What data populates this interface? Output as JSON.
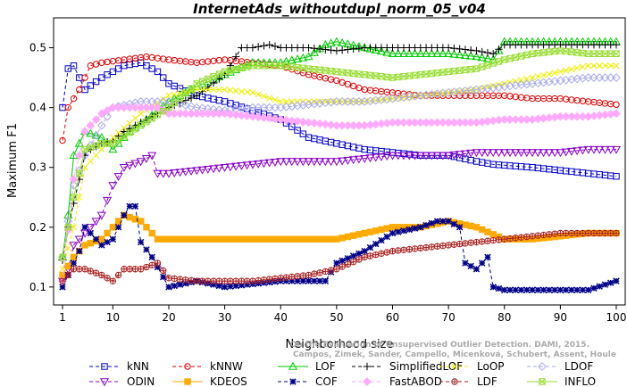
{
  "chart_data": {
    "type": "line",
    "title": "InternetAds_withoutdupl_norm_05_v04",
    "xlabel": "Neighborhood size",
    "ylabel": "Maximum F1",
    "xlim": [
      1,
      100
    ],
    "ylim": [
      0.07,
      0.55
    ],
    "x_ticks": [
      1,
      10,
      20,
      30,
      40,
      50,
      60,
      70,
      80,
      90,
      100
    ],
    "y_ticks": [
      0.1,
      0.2,
      0.3,
      0.4,
      0.5
    ],
    "grid": false,
    "legend_position": "bottom",
    "watermark": [
      "Campos, Zimek, Sander, Campello, Micenková, Schubert, Assent, Houle",
      "On the Evaluation of Unsupervised Outlier Detection. DAMI, 2015."
    ],
    "series": [
      {
        "name": "kNN",
        "color": "#0000cc",
        "marker": "square",
        "dash": "4,3",
        "x": [
          1,
          2,
          3,
          5,
          8,
          12,
          15,
          18,
          20,
          25,
          30,
          35,
          40,
          45,
          50,
          55,
          60,
          65,
          70,
          75,
          78,
          85,
          90,
          95,
          100
        ],
        "y": [
          0.4,
          0.465,
          0.47,
          0.43,
          0.45,
          0.47,
          0.475,
          0.46,
          0.44,
          0.42,
          0.41,
          0.395,
          0.38,
          0.35,
          0.34,
          0.33,
          0.325,
          0.32,
          0.32,
          0.31,
          0.305,
          0.3,
          0.295,
          0.29,
          0.285
        ]
      },
      {
        "name": "kNNW",
        "color": "#dd0000",
        "marker": "circle",
        "dash": "4,3",
        "x": [
          1,
          2,
          4,
          6,
          8,
          12,
          16,
          20,
          25,
          30,
          35,
          40,
          45,
          50,
          55,
          60,
          65,
          70,
          75,
          80,
          85,
          90,
          95,
          100
        ],
        "y": [
          0.345,
          0.4,
          0.43,
          0.47,
          0.475,
          0.48,
          0.485,
          0.48,
          0.475,
          0.48,
          0.475,
          0.47,
          0.455,
          0.445,
          0.43,
          0.425,
          0.42,
          0.42,
          0.42,
          0.42,
          0.415,
          0.415,
          0.41,
          0.405
        ]
      },
      {
        "name": "LOF",
        "color": "#00cc00",
        "marker": "triangle-up",
        "dash": "",
        "x": [
          1,
          2,
          3,
          5,
          8,
          10,
          13,
          16,
          20,
          25,
          30,
          35,
          40,
          45,
          48,
          50,
          55,
          60,
          65,
          70,
          75,
          78,
          80,
          85,
          90,
          95,
          100
        ],
        "y": [
          0.15,
          0.22,
          0.32,
          0.36,
          0.35,
          0.33,
          0.36,
          0.38,
          0.41,
          0.435,
          0.455,
          0.475,
          0.475,
          0.485,
          0.505,
          0.51,
          0.5,
          0.49,
          0.49,
          0.49,
          0.485,
          0.48,
          0.51,
          0.51,
          0.51,
          0.51,
          0.51
        ]
      },
      {
        "name": "SimplifiedLOF",
        "color": "#000000",
        "marker": "plus",
        "dash": "4,3",
        "x": [
          1,
          2,
          3,
          4,
          5,
          6,
          8,
          10,
          12,
          15,
          18,
          20,
          25,
          30,
          33,
          35,
          38,
          40,
          45,
          50,
          55,
          60,
          65,
          70,
          75,
          78,
          80,
          85,
          90,
          95,
          100
        ],
        "y": [
          0.145,
          0.2,
          0.24,
          0.28,
          0.32,
          0.33,
          0.34,
          0.345,
          0.36,
          0.375,
          0.39,
          0.4,
          0.42,
          0.455,
          0.5,
          0.5,
          0.505,
          0.5,
          0.5,
          0.495,
          0.5,
          0.5,
          0.5,
          0.5,
          0.495,
          0.49,
          0.505,
          0.505,
          0.505,
          0.505,
          0.505
        ]
      },
      {
        "name": "LoOP",
        "color": "#eeee00",
        "marker": "cross",
        "dash": "4,3",
        "x": [
          1,
          3,
          5,
          8,
          10,
          15,
          20,
          25,
          30,
          35,
          40,
          45,
          50,
          55,
          60,
          65,
          70,
          75,
          80,
          85,
          90,
          95,
          100
        ],
        "y": [
          0.13,
          0.2,
          0.3,
          0.33,
          0.35,
          0.39,
          0.42,
          0.43,
          0.43,
          0.425,
          0.41,
          0.41,
          0.41,
          0.41,
          0.415,
          0.42,
          0.425,
          0.43,
          0.44,
          0.45,
          0.46,
          0.47,
          0.47
        ]
      },
      {
        "name": "LDOF",
        "color": "#aaaaee",
        "marker": "diamond",
        "dash": "4,3",
        "x": [
          1,
          3,
          5,
          8,
          10,
          15,
          20,
          25,
          30,
          35,
          40,
          45,
          50,
          55,
          60,
          65,
          70,
          75,
          80,
          85,
          90,
          95,
          100
        ],
        "y": [
          0.15,
          0.27,
          0.32,
          0.37,
          0.4,
          0.41,
          0.41,
          0.4,
          0.395,
          0.4,
          0.4,
          0.405,
          0.41,
          0.41,
          0.415,
          0.42,
          0.425,
          0.43,
          0.435,
          0.44,
          0.445,
          0.45,
          0.45
        ]
      },
      {
        "name": "ODIN",
        "color": "#8800cc",
        "marker": "triangle-down",
        "dash": "4,3",
        "x": [
          1,
          2,
          3,
          5,
          8,
          10,
          12,
          15,
          17,
          18,
          20,
          25,
          30,
          35,
          40,
          45,
          50,
          55,
          60,
          65,
          70,
          75,
          80,
          85,
          90,
          95,
          100
        ],
        "y": [
          0.11,
          0.13,
          0.17,
          0.19,
          0.22,
          0.27,
          0.3,
          0.31,
          0.32,
          0.29,
          0.29,
          0.295,
          0.3,
          0.305,
          0.31,
          0.31,
          0.31,
          0.315,
          0.32,
          0.32,
          0.32,
          0.325,
          0.325,
          0.325,
          0.325,
          0.33,
          0.33
        ]
      },
      {
        "name": "KDEOS",
        "color": "#ffaa00",
        "marker": "square-filled",
        "dash": "",
        "x": [
          1,
          3,
          5,
          8,
          10,
          12,
          15,
          18,
          20,
          25,
          30,
          35,
          40,
          45,
          50,
          55,
          60,
          65,
          70,
          75,
          80,
          85,
          90,
          95,
          100
        ],
        "y": [
          0.12,
          0.15,
          0.17,
          0.18,
          0.2,
          0.22,
          0.21,
          0.18,
          0.18,
          0.18,
          0.18,
          0.18,
          0.18,
          0.18,
          0.18,
          0.19,
          0.2,
          0.2,
          0.21,
          0.2,
          0.18,
          0.18,
          0.185,
          0.19,
          0.19
        ]
      },
      {
        "name": "COF",
        "color": "#000088",
        "marker": "star",
        "dash": "4,3",
        "x": [
          1,
          2,
          3,
          4,
          5,
          6,
          8,
          10,
          12,
          13,
          14,
          15,
          17,
          20,
          25,
          30,
          35,
          40,
          45,
          48,
          50,
          55,
          60,
          65,
          68,
          70,
          72,
          73,
          75,
          77,
          78,
          80,
          85,
          90,
          95,
          100
        ],
        "y": [
          0.1,
          0.12,
          0.14,
          0.16,
          0.2,
          0.19,
          0.17,
          0.18,
          0.22,
          0.235,
          0.235,
          0.175,
          0.15,
          0.1,
          0.11,
          0.1,
          0.105,
          0.11,
          0.11,
          0.11,
          0.14,
          0.16,
          0.19,
          0.2,
          0.21,
          0.21,
          0.2,
          0.14,
          0.13,
          0.15,
          0.1,
          0.095,
          0.095,
          0.095,
          0.095,
          0.11
        ]
      },
      {
        "name": "FastABOD",
        "color": "#ffaaff",
        "marker": "diamond-filled",
        "dash": "4,3",
        "x": [
          1,
          3,
          5,
          8,
          10,
          12,
          15,
          18,
          20,
          25,
          30,
          35,
          40,
          45,
          50,
          55,
          60,
          65,
          70,
          75,
          80,
          85,
          90,
          95,
          100
        ],
        "y": [
          0.11,
          0.28,
          0.36,
          0.39,
          0.4,
          0.4,
          0.4,
          0.4,
          0.39,
          0.39,
          0.39,
          0.385,
          0.38,
          0.375,
          0.37,
          0.37,
          0.375,
          0.375,
          0.375,
          0.375,
          0.38,
          0.38,
          0.385,
          0.385,
          0.39
        ]
      },
      {
        "name": "LDF",
        "color": "#aa2222",
        "marker": "circle-plus",
        "dash": "4,3",
        "x": [
          1,
          3,
          5,
          8,
          10,
          12,
          15,
          18,
          20,
          25,
          30,
          35,
          40,
          45,
          50,
          55,
          60,
          65,
          70,
          75,
          80,
          85,
          90,
          95,
          100
        ],
        "y": [
          0.11,
          0.13,
          0.13,
          0.12,
          0.11,
          0.13,
          0.13,
          0.14,
          0.115,
          0.11,
          0.11,
          0.11,
          0.115,
          0.12,
          0.13,
          0.15,
          0.16,
          0.165,
          0.17,
          0.175,
          0.18,
          0.185,
          0.19,
          0.19,
          0.19
        ]
      },
      {
        "name": "INFLO",
        "color": "#99dd33",
        "marker": "square-x",
        "dash": "",
        "x": [
          1,
          3,
          5,
          8,
          10,
          15,
          20,
          25,
          30,
          35,
          40,
          45,
          50,
          55,
          60,
          65,
          70,
          75,
          80,
          85,
          90,
          95,
          100
        ],
        "y": [
          0.15,
          0.25,
          0.33,
          0.34,
          0.34,
          0.37,
          0.4,
          0.44,
          0.46,
          0.47,
          0.47,
          0.465,
          0.46,
          0.455,
          0.45,
          0.455,
          0.46,
          0.465,
          0.48,
          0.49,
          0.495,
          0.49,
          0.49
        ]
      }
    ]
  }
}
